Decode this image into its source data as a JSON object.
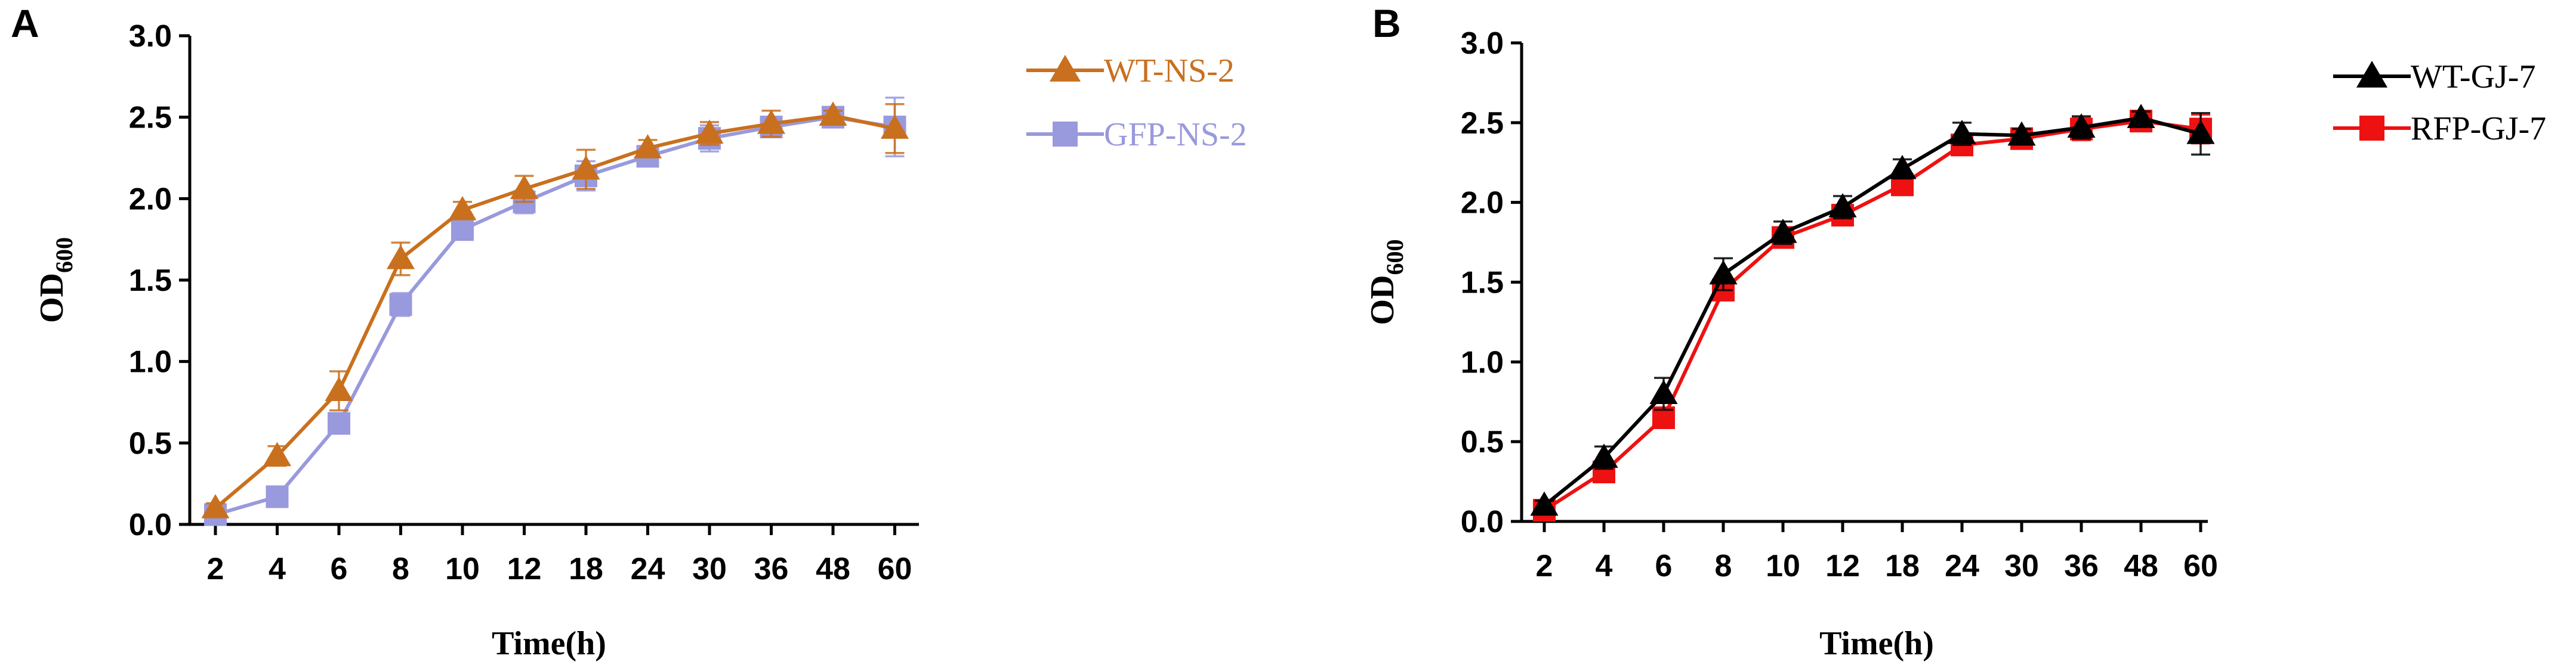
{
  "chart_data": [
    {
      "panel": "A",
      "type": "line",
      "xlabel": "Time(h)",
      "ylabel": "OD",
      "ylabel_subscript": "600",
      "categories": [
        "2",
        "4",
        "6",
        "8",
        "10",
        "12",
        "18",
        "24",
        "30",
        "36",
        "48",
        "60"
      ],
      "ylim": [
        0,
        3.0
      ],
      "yticks": [
        "0.0",
        "0.5",
        "1.0",
        "1.5",
        "2.0",
        "2.5",
        "3.0"
      ],
      "grid": false,
      "legend_position": "top-right",
      "series": [
        {
          "name": "WT-NS-2",
          "marker": "triangle",
          "color": "#C9701E",
          "values": [
            0.1,
            0.42,
            0.82,
            1.63,
            1.93,
            2.06,
            2.18,
            2.31,
            2.4,
            2.46,
            2.51,
            2.43
          ],
          "errors": [
            0.03,
            0.06,
            0.12,
            0.1,
            0.05,
            0.08,
            0.12,
            0.05,
            0.07,
            0.08,
            0.03,
            0.15
          ]
        },
        {
          "name": "GFP-NS-2",
          "marker": "square",
          "color": "#9999DD",
          "values": [
            0.06,
            0.17,
            0.62,
            1.35,
            1.81,
            1.98,
            2.14,
            2.26,
            2.37,
            2.44,
            2.5,
            2.44
          ],
          "errors": [
            0.02,
            0.03,
            0.06,
            0.07,
            0.05,
            0.07,
            0.09,
            0.04,
            0.08,
            0.06,
            0.03,
            0.18
          ]
        }
      ]
    },
    {
      "panel": "B",
      "type": "line",
      "xlabel": "Time(h)",
      "ylabel": "OD",
      "ylabel_subscript": "600",
      "categories": [
        "2",
        "4",
        "6",
        "8",
        "10",
        "12",
        "18",
        "24",
        "30",
        "36",
        "48",
        "60"
      ],
      "ylim": [
        0,
        3.0
      ],
      "yticks": [
        "0.0",
        "0.5",
        "1.0",
        "1.5",
        "2.0",
        "2.5",
        "3.0"
      ],
      "grid": false,
      "legend_position": "top-right",
      "series": [
        {
          "name": "WT-GJ-7",
          "marker": "triangle",
          "color": "#000000",
          "values": [
            0.1,
            0.4,
            0.8,
            1.55,
            1.81,
            1.97,
            2.21,
            2.43,
            2.42,
            2.47,
            2.53,
            2.43
          ],
          "errors": [
            0.03,
            0.07,
            0.1,
            0.1,
            0.07,
            0.07,
            0.06,
            0.07,
            0.04,
            0.07,
            0.04,
            0.13
          ]
        },
        {
          "name": "RFP-GJ-7",
          "marker": "square",
          "color": "#EE1111",
          "values": [
            0.07,
            0.31,
            0.65,
            1.45,
            1.78,
            1.92,
            2.11,
            2.36,
            2.4,
            2.46,
            2.51,
            2.46
          ],
          "errors": [
            0.02,
            0.04,
            0.05,
            0.06,
            0.05,
            0.06,
            0.05,
            0.05,
            0.04,
            0.07,
            0.03,
            0.09
          ]
        }
      ]
    }
  ]
}
